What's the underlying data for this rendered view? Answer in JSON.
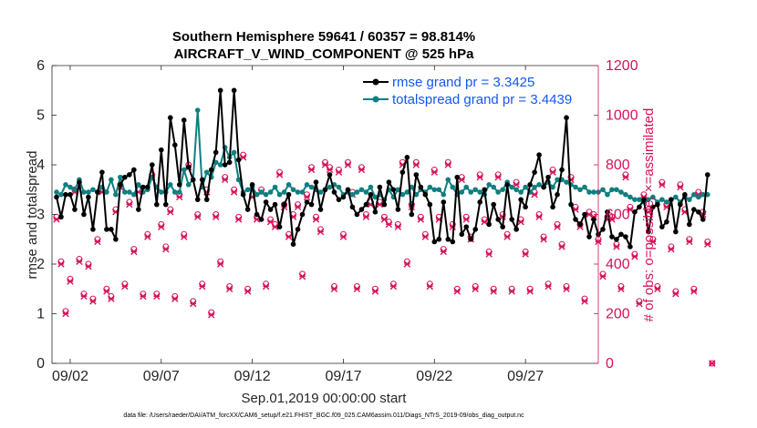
{
  "chart_data": {
    "type": "line",
    "title_line1": "Southern Hemisphere 59641 / 60357 = 98.814%",
    "title_line2": "AIRCRAFT_V_WIND_COMPONENT @ 525 hPa",
    "ylabel_left": "rmse and totalspread",
    "ylabel_right": "# of obs: o=possible; ×=assimilated",
    "xlabel": "Sep.01,2019 00:00:00 start",
    "footer": "data file: /Users/raeder/DAI/ATM_forcXX/CAM6_setup/f.e21.FHIST_BGC.f09_025.CAM6assim.011/Diags_NTrS_2019-09/obs_diag_output.nc",
    "ylim_left": [
      0,
      6
    ],
    "ylim_right": [
      0,
      1200
    ],
    "xlim_days": [
      0.5,
      30.5
    ],
    "x_ticks": [
      {
        "day": 1.5,
        "label": "09/02"
      },
      {
        "day": 6.5,
        "label": "09/07"
      },
      {
        "day": 11.5,
        "label": "09/12"
      },
      {
        "day": 16.5,
        "label": "09/17"
      },
      {
        "day": 21.5,
        "label": "09/22"
      },
      {
        "day": 26.5,
        "label": "09/27"
      }
    ],
    "y_ticks_left": [
      "0",
      "1",
      "2",
      "3",
      "4",
      "5",
      "6"
    ],
    "y_ticks_right": [
      "0",
      "200",
      "400",
      "600",
      "800",
      "1000",
      "1200"
    ],
    "legend": [
      {
        "label": "rmse grand pr = 3.3425",
        "color": "#000000"
      },
      {
        "label": "totalspread grand pr = 3.4439",
        "color": "#0f7f80"
      }
    ],
    "x_start_day": 0.75,
    "x_step_days": 0.25,
    "series": [
      {
        "name": "rmse",
        "color": "#000000",
        "values": [
          3.35,
          2.95,
          3.4,
          3.4,
          3.1,
          3.65,
          3.0,
          3.35,
          2.7,
          3.45,
          3.85,
          2.7,
          2.7,
          2.5,
          3.6,
          3.75,
          3.8,
          3.9,
          3.1,
          3.55,
          3.55,
          4.0,
          3.2,
          4.3,
          3.2,
          4.95,
          4.4,
          3.6,
          4.9,
          3.95,
          3.7,
          3.3,
          3.7,
          3.3,
          3.9,
          4.25,
          5.5,
          4.0,
          4.05,
          5.5,
          4.1,
          3.4,
          3.1,
          3.6,
          3.0,
          2.9,
          3.25,
          3.1,
          3.2,
          2.75,
          3.2,
          3.4,
          2.4,
          2.7,
          3.0,
          3.25,
          3.2,
          3.65,
          3.1,
          3.5,
          3.8,
          3.45,
          3.3,
          3.35,
          3.5,
          3.15,
          3.0,
          3.1,
          3.2,
          3.4,
          3.05,
          3.55,
          3.2,
          3.65,
          3.5,
          3.1,
          3.85,
          4.15,
          3.0,
          3.8,
          3.55,
          3.4,
          3.2,
          2.45,
          2.5,
          3.25,
          2.5,
          2.45,
          3.75,
          2.6,
          2.75,
          2.5,
          2.7,
          3.25,
          3.5,
          2.8,
          3.2,
          2.9,
          2.75,
          3.6,
          2.9,
          2.7,
          3.3,
          3.15,
          3.6,
          3.85,
          4.2,
          3.55,
          3.75,
          3.15,
          3.4,
          3.9,
          4.95,
          3.2,
          2.9,
          2.8,
          3.0,
          2.55,
          2.9,
          2.6,
          2.7,
          3.05,
          2.55,
          2.5,
          2.6,
          2.55,
          2.35,
          3.05,
          3.15,
          3.3,
          2.65,
          3.15,
          3.2,
          2.75,
          2.85,
          3.3,
          2.65,
          3.2,
          3.4,
          2.8,
          3.1,
          3.05,
          2.9,
          3.8
        ]
      },
      {
        "name": "totalspread",
        "color": "#0f7f80",
        "values": [
          3.45,
          3.4,
          3.6,
          3.55,
          3.5,
          3.7,
          3.45,
          3.45,
          3.5,
          3.45,
          3.55,
          3.45,
          3.7,
          3.4,
          3.75,
          3.45,
          3.45,
          3.4,
          3.6,
          3.45,
          3.5,
          3.75,
          3.55,
          3.45,
          3.45,
          3.6,
          3.45,
          3.45,
          3.9,
          3.6,
          3.7,
          5.1,
          3.55,
          3.85,
          3.75,
          4.05,
          4.0,
          4.35,
          4.15,
          4.25,
          3.7,
          3.45,
          3.5,
          3.55,
          3.4,
          3.45,
          3.4,
          3.45,
          3.55,
          3.4,
          3.45,
          3.6,
          3.5,
          3.45,
          3.45,
          3.6,
          3.55,
          3.5,
          3.45,
          3.5,
          3.55,
          3.6,
          3.55,
          3.4,
          3.45,
          3.4,
          3.45,
          3.5,
          3.45,
          3.55,
          3.35,
          3.4,
          3.3,
          3.5,
          3.35,
          3.5,
          3.4,
          3.45,
          3.55,
          3.4,
          3.5,
          3.45,
          3.55,
          3.5,
          3.5,
          3.4,
          3.7,
          3.55,
          3.4,
          3.45,
          3.55,
          3.45,
          3.5,
          3.45,
          3.4,
          3.6,
          3.55,
          3.45,
          3.5,
          3.65,
          3.55,
          3.5,
          3.45,
          3.55,
          3.45,
          3.55,
          3.6,
          3.55,
          3.65,
          3.55,
          3.7,
          3.7,
          3.65,
          3.6,
          3.55,
          3.5,
          3.55,
          3.45,
          3.45,
          3.45,
          3.5,
          3.4,
          3.5,
          3.5,
          3.45,
          3.4,
          3.35,
          3.3,
          3.3,
          3.25,
          3.3,
          3.35,
          3.25,
          3.3,
          3.25,
          3.3,
          3.35,
          3.25,
          3.35,
          3.3,
          3.4,
          3.35,
          3.4,
          3.4
        ]
      }
    ],
    "obs": {
      "description": "# of observations per 6-hour cycle, right axis",
      "possible": [
        590,
        410,
        210,
        340,
        700,
        420,
        280,
        400,
        260,
        500,
        700,
        300,
        270,
        620,
        720,
        320,
        650,
        460,
        700,
        280,
        520,
        760,
        280,
        560,
        470,
        620,
        270,
        680,
        520,
        800,
        250,
        600,
        320,
        700,
        205,
        600,
        410,
        750,
        310,
        700,
        590,
        840,
        300,
        680,
        590,
        700,
        320,
        580,
        560,
        770,
        640,
        520,
        600,
        640,
        360,
        680,
        790,
        590,
        540,
        810,
        790,
        310,
        780,
        520,
        810,
        690,
        310,
        790,
        600,
        650,
        300,
        650,
        590,
        570,
        320,
        560,
        810,
        410,
        640,
        810,
        590,
        520,
        320,
        780,
        590,
        460,
        810,
        560,
        300,
        750,
        590,
        510,
        310,
        760,
        580,
        450,
        300,
        760,
        600,
        520,
        300,
        730,
        580,
        450,
        300,
        690,
        600,
        510,
        320,
        780,
        560,
        480,
        310,
        750,
        630,
        560,
        260,
        610,
        600,
        500,
        360,
        590,
        590,
        480,
        310,
        760,
        630,
        440,
        250,
        680,
        620,
        500,
        310,
        730,
        640,
        470,
        290,
        720,
        620,
        500,
        300,
        690,
        610,
        490,
        0
      ],
      "assimilated": [
        580,
        400,
        200,
        330,
        690,
        410,
        270,
        390,
        250,
        490,
        690,
        290,
        260,
        610,
        710,
        310,
        640,
        450,
        690,
        270,
        510,
        750,
        270,
        550,
        460,
        610,
        260,
        670,
        510,
        790,
        240,
        590,
        310,
        690,
        195,
        590,
        400,
        740,
        300,
        690,
        580,
        830,
        290,
        670,
        580,
        690,
        310,
        570,
        550,
        760,
        630,
        510,
        590,
        630,
        350,
        670,
        780,
        580,
        530,
        800,
        780,
        300,
        770,
        510,
        800,
        680,
        300,
        780,
        590,
        640,
        290,
        640,
        580,
        560,
        310,
        550,
        800,
        400,
        630,
        800,
        580,
        510,
        310,
        770,
        580,
        450,
        800,
        550,
        290,
        740,
        580,
        500,
        300,
        750,
        570,
        440,
        290,
        750,
        590,
        510,
        290,
        720,
        570,
        440,
        290,
        680,
        590,
        500,
        310,
        770,
        550,
        470,
        300,
        740,
        620,
        550,
        250,
        600,
        590,
        490,
        350,
        580,
        580,
        470,
        300,
        750,
        620,
        430,
        240,
        670,
        610,
        490,
        300,
        720,
        630,
        460,
        280,
        710,
        610,
        490,
        290,
        680,
        600,
        480,
        0
      ]
    }
  }
}
